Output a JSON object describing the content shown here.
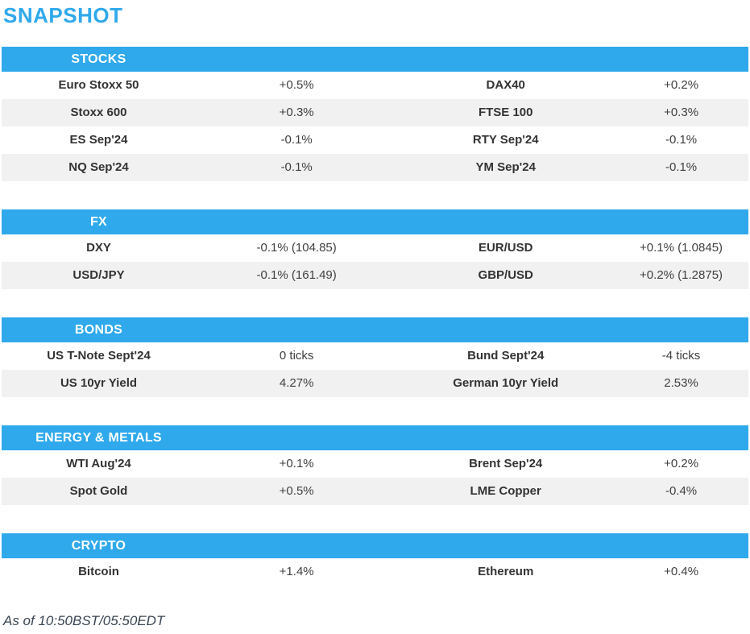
{
  "page_title": "SNAPSHOT",
  "colors": {
    "accent_blue": "#2FA9EC",
    "row_alt_gray": "#F1F1F2",
    "header_text": "#FFFFFF",
    "label_text": "#333333",
    "value_text": "#404040",
    "footer_text": "#3A4653"
  },
  "sections": [
    {
      "title": "STOCKS",
      "rows": [
        {
          "l1": "Euro Stoxx 50",
          "v1": "+0.5%",
          "l2": "DAX40",
          "v2": "+0.2%"
        },
        {
          "l1": "Stoxx 600",
          "v1": "+0.3%",
          "l2": "FTSE 100",
          "v2": "+0.3%"
        },
        {
          "l1": "ES Sep'24",
          "v1": "-0.1%",
          "l2": "RTY Sep'24",
          "v2": "-0.1%"
        },
        {
          "l1": "NQ Sep'24",
          "v1": "-0.1%",
          "l2": "YM Sep'24",
          "v2": "-0.1%"
        }
      ]
    },
    {
      "title": "FX",
      "rows": [
        {
          "l1": "DXY",
          "v1": "-0.1% (104.85)",
          "l2": "EUR/USD",
          "v2": "+0.1% (1.0845)"
        },
        {
          "l1": "USD/JPY",
          "v1": "-0.1% (161.49)",
          "l2": "GBP/USD",
          "v2": "+0.2% (1.2875)"
        }
      ]
    },
    {
      "title": "BONDS",
      "rows": [
        {
          "l1": "US T-Note Sept'24",
          "v1": "0 ticks",
          "l2": "Bund Sept'24",
          "v2": "-4 ticks"
        },
        {
          "l1": "US 10yr Yield",
          "v1": "4.27%",
          "l2": "German 10yr Yield",
          "v2": "2.53%"
        }
      ]
    },
    {
      "title": "ENERGY & METALS",
      "rows": [
        {
          "l1": "WTI Aug'24",
          "v1": "+0.1%",
          "l2": "Brent Sep'24",
          "v2": "+0.2%"
        },
        {
          "l1": "Spot Gold",
          "v1": "+0.5%",
          "l2": "LME Copper",
          "v2": "-0.4%"
        }
      ]
    },
    {
      "title": "CRYPTO",
      "rows": [
        {
          "l1": "Bitcoin",
          "v1": "+1.4%",
          "l2": "Ethereum",
          "v2": "+0.4%"
        }
      ]
    }
  ],
  "footer": {
    "as_of": "As of 10:50BST/05:50EDT"
  }
}
